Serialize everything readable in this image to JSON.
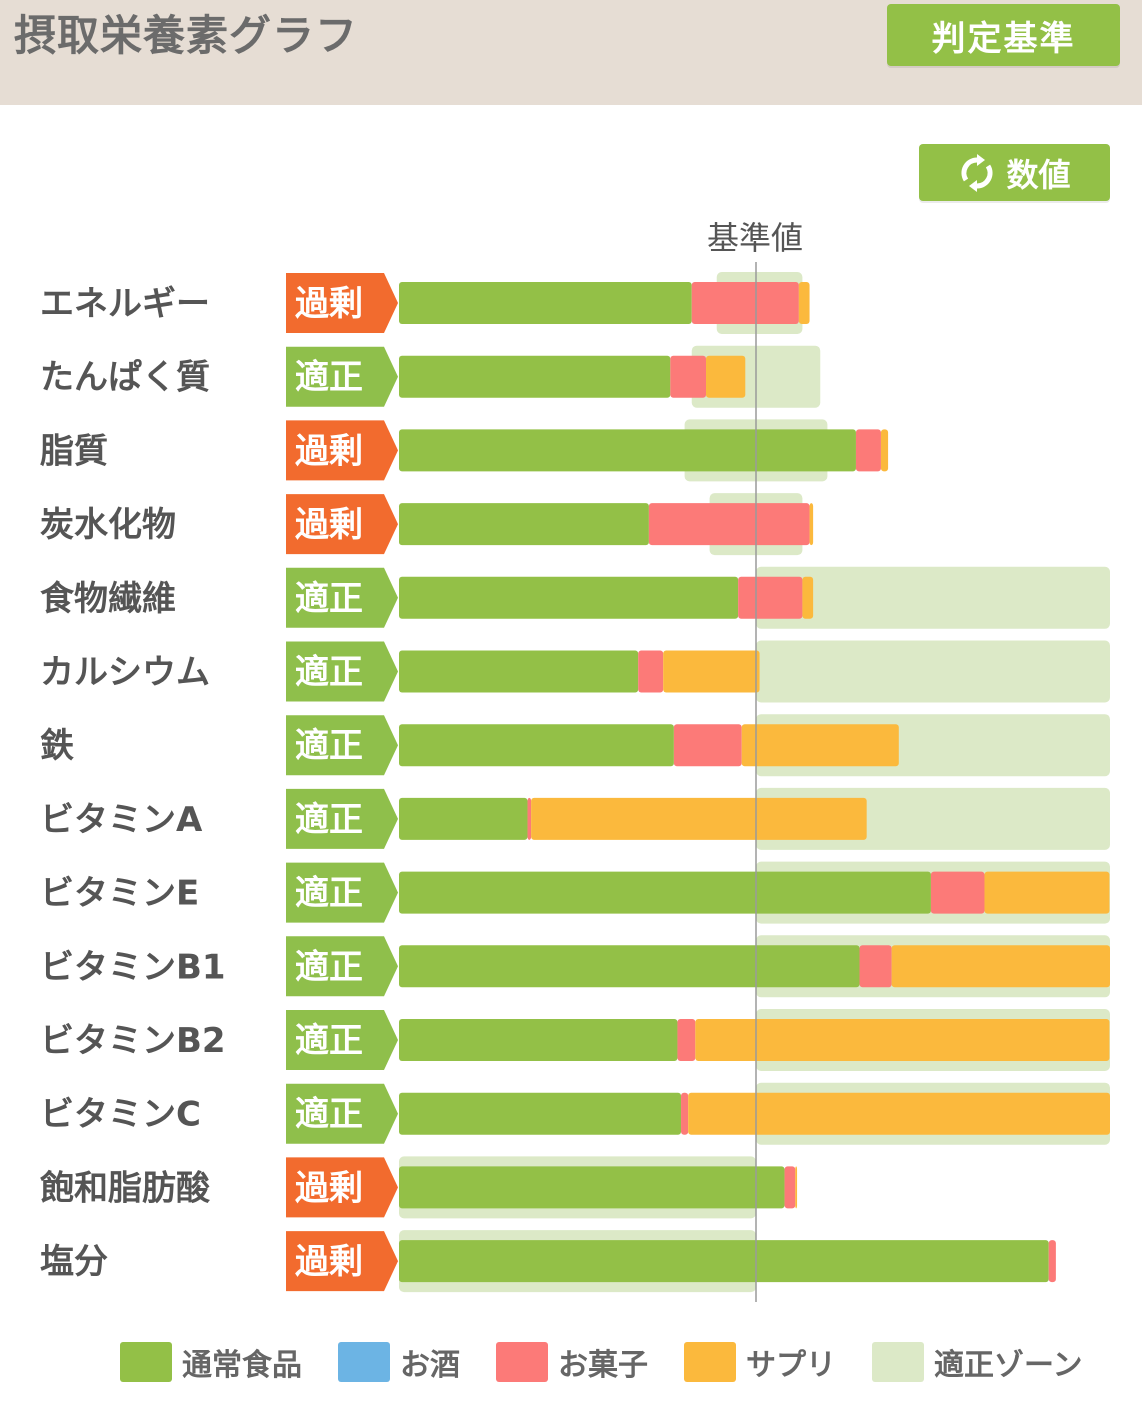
{
  "header": {
    "title": "摂取栄養素グラフ",
    "criteria_button": "判定基準"
  },
  "toggle": {
    "label": "数値",
    "icon": "refresh-icon"
  },
  "colors": {
    "header_bg": "#e6ddd4",
    "button": "#93c047",
    "normal_food": "#93c047",
    "alcohol": "#6cb4e4",
    "snack": "#fc7a78",
    "supplement": "#fbb93d",
    "proper_zone": "#dce9c7",
    "status_excess": "#f26b2e",
    "status_proper": "#8fbf4b"
  },
  "chart_data": {
    "type": "bar",
    "orientation": "horizontal",
    "stacked": true,
    "reference_label": "基準値",
    "reference_value": 100,
    "xlim": [
      0,
      200
    ],
    "categories": [
      "エネルギー",
      "たんぱく質",
      "脂質",
      "炭水化物",
      "食物繊維",
      "カルシウム",
      "鉄",
      "ビタミンA",
      "ビタミンE",
      "ビタミンB1",
      "ビタミンB2",
      "ビタミンC",
      "飽和脂肪酸",
      "塩分"
    ],
    "status": [
      "過剰",
      "適正",
      "過剰",
      "過剰",
      "適正",
      "適正",
      "適正",
      "適正",
      "適正",
      "適正",
      "適正",
      "適正",
      "過剰",
      "過剰"
    ],
    "series": [
      {
        "name": "通常食品",
        "values": [
          82,
          76,
          128,
          70,
          95,
          67,
          77,
          36,
          149,
          129,
          78,
          79,
          108,
          182
        ]
      },
      {
        "name": "お酒",
        "values": [
          0,
          0,
          0,
          0,
          0,
          0,
          0,
          0,
          0,
          0,
          0,
          0,
          0,
          0
        ]
      },
      {
        "name": "お菓子",
        "values": [
          30,
          10,
          7,
          45,
          18,
          7,
          19,
          1,
          15,
          9,
          5,
          2,
          3,
          2
        ]
      },
      {
        "name": "サプリ",
        "values": [
          3,
          11,
          2,
          1,
          3,
          27,
          44,
          94,
          35,
          62,
          116,
          119,
          0.5,
          0
        ]
      }
    ],
    "proper_zone": [
      [
        89,
        113
      ],
      [
        82,
        118
      ],
      [
        80,
        120
      ],
      [
        87,
        113
      ],
      [
        100,
        200
      ],
      [
        100,
        200
      ],
      [
        100,
        200
      ],
      [
        100,
        200
      ],
      [
        100,
        200
      ],
      [
        100,
        200
      ],
      [
        100,
        200
      ],
      [
        100,
        200
      ],
      [
        0,
        100
      ],
      [
        0,
        100
      ]
    ],
    "legend": [
      "通常食品",
      "お酒",
      "お菓子",
      "サプリ",
      "適正ゾーン"
    ]
  }
}
